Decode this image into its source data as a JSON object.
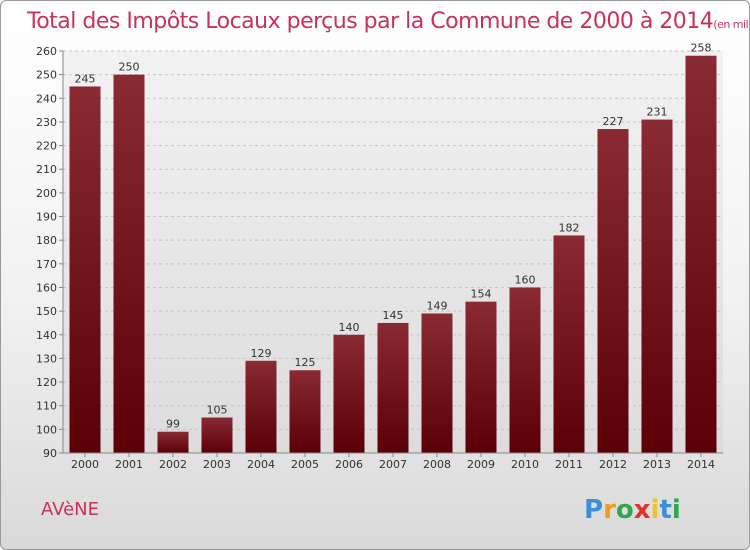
{
  "chart_data": {
    "type": "bar",
    "title": "Total des Impôts Locaux perçus par la Commune de 2000 à 2014",
    "subtitle": "(en milliers d'€)",
    "categories": [
      "2000",
      "2001",
      "2002",
      "2003",
      "2004",
      "2005",
      "2006",
      "2007",
      "2008",
      "2009",
      "2010",
      "2011",
      "2012",
      "2013",
      "2014"
    ],
    "values": [
      245,
      250,
      99,
      105,
      129,
      125,
      140,
      145,
      149,
      154,
      160,
      182,
      227,
      231,
      258
    ],
    "ylim": [
      90,
      260
    ],
    "yticks": [
      90,
      100,
      110,
      120,
      130,
      140,
      150,
      160,
      170,
      180,
      190,
      200,
      210,
      220,
      230,
      240,
      250,
      260
    ],
    "xlabel": "",
    "ylabel": "",
    "grid": true,
    "bar_color": "#6e0f15"
  },
  "commune_name": "AVèNE",
  "brand": {
    "name": "Proxiti",
    "letters": [
      {
        "ch": "P",
        "color": "#3a8fd8"
      },
      {
        "ch": "r",
        "color": "#f29a1f"
      },
      {
        "ch": "o",
        "color": "#2ea84a"
      },
      {
        "ch": "x",
        "color": "#e0332b"
      },
      {
        "ch": "i",
        "color": "#f2c21f"
      },
      {
        "ch": "t",
        "color": "#3a8fd8"
      },
      {
        "ch": "i",
        "color": "#2ea84a"
      }
    ]
  }
}
